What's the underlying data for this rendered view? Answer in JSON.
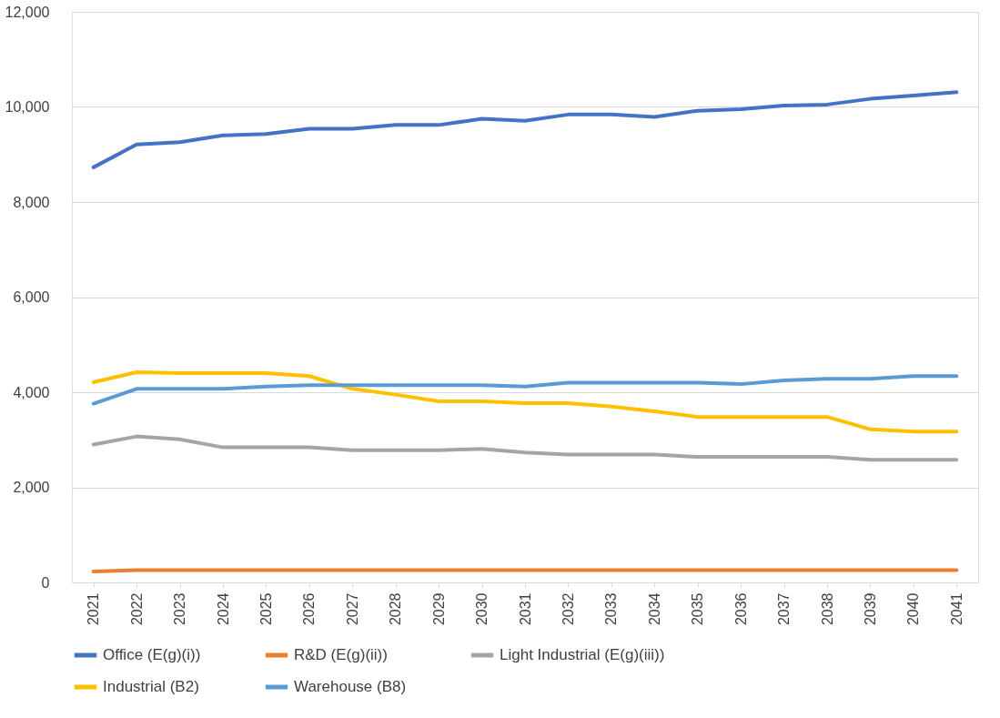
{
  "chart_data": {
    "type": "line",
    "categories": [
      "2021",
      "2022",
      "2023",
      "2024",
      "2025",
      "2026",
      "2027",
      "2028",
      "2029",
      "2030",
      "2031",
      "2032",
      "2033",
      "2034",
      "2035",
      "2036",
      "2037",
      "2038",
      "2039",
      "2040",
      "2041"
    ],
    "series": [
      {
        "name": "Office (E(g)(i))",
        "color": "#4472c4",
        "values": [
          8730,
          9210,
          9260,
          9400,
          9430,
          9540,
          9540,
          9620,
          9620,
          9750,
          9710,
          9840,
          9840,
          9790,
          9920,
          9950,
          10030,
          10050,
          10170,
          10240,
          10310
        ]
      },
      {
        "name": "R&D (E(g)(ii))",
        "color": "#ed7d31",
        "values": [
          230,
          260,
          260,
          260,
          260,
          260,
          260,
          260,
          260,
          260,
          260,
          260,
          260,
          260,
          260,
          260,
          260,
          260,
          260,
          260,
          260
        ]
      },
      {
        "name": "Light Industrial (E(g)(iii))",
        "color": "#a5a5a5",
        "values": [
          2900,
          3070,
          3010,
          2840,
          2840,
          2840,
          2780,
          2780,
          2780,
          2810,
          2730,
          2690,
          2690,
          2690,
          2640,
          2640,
          2640,
          2640,
          2580,
          2580,
          2580
        ]
      },
      {
        "name": "Industrial (B2)",
        "color": "#ffc000",
        "values": [
          4210,
          4420,
          4400,
          4400,
          4400,
          4340,
          4070,
          3950,
          3810,
          3810,
          3770,
          3770,
          3700,
          3600,
          3480,
          3480,
          3480,
          3480,
          3220,
          3170,
          3170
        ]
      },
      {
        "name": "Warehouse (B8)",
        "color": "#5b9bd5",
        "values": [
          3760,
          4070,
          4070,
          4070,
          4120,
          4150,
          4150,
          4150,
          4150,
          4150,
          4120,
          4200,
          4200,
          4200,
          4200,
          4170,
          4250,
          4280,
          4280,
          4340,
          4340
        ]
      }
    ],
    "ylim": [
      0,
      12000
    ],
    "yticks": [
      0,
      {
        "value": 2000,
        "label": "2,000"
      },
      {
        "value": 4000,
        "label": "4,000"
      },
      {
        "value": 6000,
        "label": "6,000"
      },
      {
        "value": 8000,
        "label": "8,000"
      },
      {
        "value": 10000,
        "label": "10,000"
      },
      {
        "value": 12000,
        "label": "12,000"
      }
    ],
    "grid": "y",
    "legend": "bottom",
    "marker": "none",
    "line_style": "solid"
  }
}
